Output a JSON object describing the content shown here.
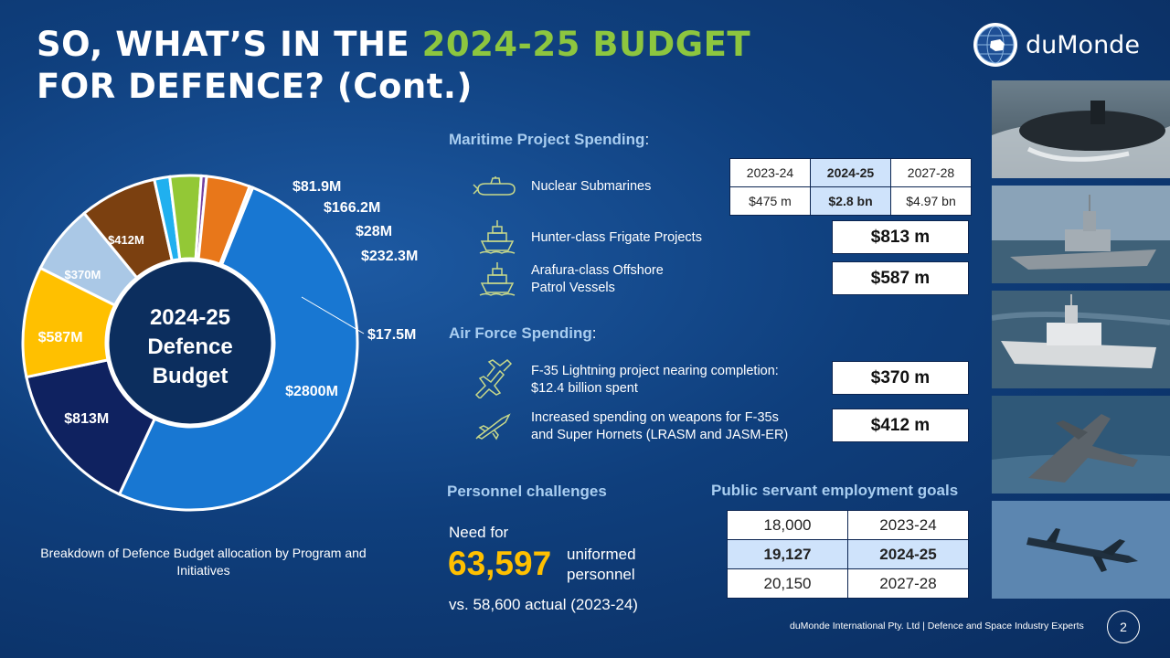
{
  "title": {
    "line1_prefix": "SO, WHAT’S IN THE ",
    "line1_highlight": "2024-25 BUDGET",
    "line2": "FOR DEFENCE? (Cont.)"
  },
  "brand": {
    "name": "duMonde"
  },
  "colors": {
    "accent_green": "#8dc63f",
    "accent_yellow": "#ffc000"
  },
  "chart_data": {
    "type": "pie",
    "title": "2024-25 Defence Budget",
    "caption": "Breakdown of Defence Budget allocation by Program and Initiatives",
    "slices": [
      {
        "label": "$2800M",
        "value": 2800,
        "color": "#1877d2",
        "icon": "submarine-icon"
      },
      {
        "label": "$813M",
        "value": 813,
        "color": "#0f2260",
        "icon": "ship-icon"
      },
      {
        "label": "$587M",
        "value": 587,
        "color": "#ffc000",
        "icon": "ship-icon"
      },
      {
        "label": "$370M",
        "value": 370,
        "color": "#aac8e6",
        "icon": "fighter-jets-icon"
      },
      {
        "label": "$412M",
        "value": 412,
        "color": "#7b4010",
        "icon": "missile-icon"
      },
      {
        "label": "$81.9M",
        "value": 81.9,
        "color": "#20b0ef",
        "icon": ""
      },
      {
        "label": "$166.2M",
        "value": 166.2,
        "color": "#93c836",
        "icon": ""
      },
      {
        "label": "$28M",
        "value": 28,
        "color": "#7440a0",
        "icon": ""
      },
      {
        "label": "$232.3M",
        "value": 232.3,
        "color": "#e8771a",
        "icon": ""
      },
      {
        "label": "$17.5M",
        "value": 17.5,
        "color": "#e4e4e4",
        "icon": ""
      }
    ],
    "center_lines": [
      "2024-25",
      "Defence",
      "Budget"
    ]
  },
  "maritime": {
    "title": "Maritime Project Spending",
    "title_suffix": ":",
    "submarines": {
      "label": "Nuclear Submarines",
      "icon": "submarine-icon",
      "years": [
        "2023-24",
        "2024-25",
        "2027-28"
      ],
      "values": [
        "$475 m",
        "$2.8 bn",
        "$4.97 bn"
      ]
    },
    "frigate": {
      "label": "Hunter-class  Frigate Projects",
      "value": "$813 m",
      "icon": "ship-icon"
    },
    "arafura": {
      "label_line1": "Arafura-class Offshore",
      "label_line2": "Patrol Vessels",
      "value": "$587 m",
      "icon": "ship-icon"
    }
  },
  "air": {
    "title": "Air Force Spending",
    "title_suffix": ":",
    "f35": {
      "label_line1": "F-35 Lightning project nearing completion:",
      "label_line2": "$12.4 billion spent",
      "value": "$370 m",
      "icon": "fighter-jets-icon"
    },
    "weapons": {
      "label_line1": "Increased spending on weapons for F-35s",
      "label_line2": "and Super Hornets (LRASM and JASM-ER)",
      "value": "$412 m",
      "icon": "missile-icon"
    }
  },
  "personnel": {
    "title": "Personnel challenges",
    "need": "Need for",
    "number": "63,597",
    "unit_line1": "uniformed",
    "unit_line2": "personnel",
    "comparison": "vs. 58,600 actual (2023-24)"
  },
  "employment": {
    "title": "Public servant employment goals",
    "rows": [
      {
        "count": "18,000",
        "year": "2023-24"
      },
      {
        "count": "19,127",
        "year": "2024-25"
      },
      {
        "count": "20,150",
        "year": "2027-28"
      }
    ]
  },
  "footer": {
    "text": "duMonde International Pty. Ltd | Defence and Space Industry Experts",
    "page": "2"
  }
}
